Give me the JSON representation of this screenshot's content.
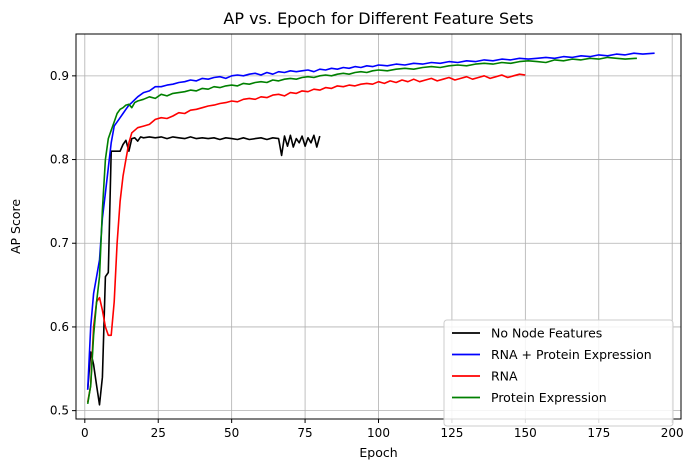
{
  "chart_data": {
    "type": "line",
    "title": "AP vs. Epoch for Different Feature Sets",
    "xlabel": "Epoch",
    "ylabel": "AP Score",
    "xlim": [
      -3,
      203
    ],
    "ylim": [
      0.49,
      0.95
    ],
    "xticks": [
      0,
      25,
      50,
      75,
      100,
      125,
      150,
      175,
      200
    ],
    "yticks": [
      0.5,
      0.6,
      0.7,
      0.8,
      0.9
    ],
    "ytick_labels": [
      "0.5",
      "0.6",
      "0.7",
      "0.8",
      "0.9"
    ],
    "grid": true,
    "legend_position": "lower-right",
    "series": [
      {
        "name": "No Node Features",
        "color": "#000000",
        "x": [
          1,
          2,
          3,
          4,
          5,
          6,
          7,
          8,
          9,
          10,
          11,
          12,
          13,
          14,
          15,
          16,
          17,
          18,
          19,
          20,
          22,
          24,
          26,
          28,
          30,
          32,
          34,
          36,
          38,
          40,
          42,
          44,
          46,
          48,
          50,
          52,
          54,
          56,
          58,
          60,
          62,
          64,
          66,
          67,
          68,
          69,
          70,
          71,
          72,
          73,
          74,
          75,
          76,
          77,
          78,
          79,
          80
        ],
        "y": [
          0.525,
          0.57,
          0.555,
          0.53,
          0.507,
          0.54,
          0.66,
          0.665,
          0.81,
          0.81,
          0.81,
          0.81,
          0.818,
          0.823,
          0.81,
          0.825,
          0.826,
          0.822,
          0.827,
          0.826,
          0.827,
          0.826,
          0.827,
          0.825,
          0.827,
          0.826,
          0.825,
          0.827,
          0.825,
          0.826,
          0.825,
          0.826,
          0.824,
          0.826,
          0.825,
          0.824,
          0.826,
          0.824,
          0.825,
          0.826,
          0.824,
          0.826,
          0.825,
          0.805,
          0.828,
          0.816,
          0.829,
          0.815,
          0.825,
          0.82,
          0.828,
          0.816,
          0.826,
          0.82,
          0.829,
          0.815,
          0.828
        ]
      },
      {
        "name": "RNA + Protein Expression",
        "color": "#0000ff",
        "x": [
          1,
          2,
          3,
          4,
          5,
          6,
          7,
          8,
          9,
          10,
          11,
          12,
          13,
          14,
          15,
          16,
          18,
          20,
          22,
          24,
          26,
          28,
          30,
          32,
          34,
          36,
          38,
          40,
          42,
          44,
          46,
          48,
          50,
          52,
          54,
          56,
          58,
          60,
          62,
          64,
          66,
          68,
          70,
          72,
          74,
          76,
          78,
          80,
          82,
          84,
          86,
          88,
          90,
          92,
          94,
          96,
          98,
          100,
          103,
          106,
          109,
          112,
          115,
          118,
          121,
          124,
          127,
          130,
          133,
          136,
          139,
          142,
          145,
          148,
          151,
          154,
          157,
          160,
          163,
          166,
          169,
          172,
          175,
          178,
          181,
          184,
          187,
          190,
          194
        ],
        "y": [
          0.525,
          0.6,
          0.64,
          0.66,
          0.68,
          0.73,
          0.76,
          0.79,
          0.82,
          0.84,
          0.845,
          0.85,
          0.855,
          0.86,
          0.865,
          0.868,
          0.875,
          0.88,
          0.882,
          0.887,
          0.887,
          0.889,
          0.89,
          0.892,
          0.893,
          0.895,
          0.894,
          0.897,
          0.896,
          0.898,
          0.899,
          0.897,
          0.9,
          0.901,
          0.9,
          0.902,
          0.903,
          0.901,
          0.904,
          0.902,
          0.905,
          0.904,
          0.906,
          0.905,
          0.906,
          0.907,
          0.905,
          0.908,
          0.907,
          0.909,
          0.908,
          0.91,
          0.909,
          0.911,
          0.91,
          0.912,
          0.911,
          0.913,
          0.912,
          0.914,
          0.913,
          0.915,
          0.914,
          0.916,
          0.915,
          0.917,
          0.916,
          0.918,
          0.917,
          0.919,
          0.918,
          0.92,
          0.919,
          0.921,
          0.92,
          0.921,
          0.922,
          0.921,
          0.923,
          0.922,
          0.924,
          0.923,
          0.925,
          0.924,
          0.926,
          0.925,
          0.927,
          0.926,
          0.927
        ]
      },
      {
        "name": "RNA",
        "color": "#ff0000",
        "x": [
          1,
          2,
          3,
          4,
          5,
          6,
          7,
          8,
          9,
          10,
          11,
          12,
          13,
          14,
          15,
          16,
          17,
          18,
          20,
          22,
          24,
          26,
          28,
          30,
          32,
          34,
          36,
          38,
          40,
          42,
          44,
          46,
          48,
          50,
          52,
          54,
          56,
          58,
          60,
          62,
          64,
          66,
          68,
          70,
          72,
          74,
          76,
          78,
          80,
          82,
          84,
          86,
          88,
          90,
          92,
          94,
          96,
          98,
          100,
          102,
          104,
          106,
          108,
          110,
          112,
          114,
          116,
          118,
          120,
          122,
          124,
          126,
          128,
          130,
          132,
          134,
          136,
          138,
          140,
          142,
          144,
          146,
          148,
          150
        ],
        "y": [
          0.51,
          0.53,
          0.6,
          0.63,
          0.635,
          0.62,
          0.6,
          0.59,
          0.59,
          0.63,
          0.7,
          0.75,
          0.78,
          0.8,
          0.82,
          0.832,
          0.835,
          0.838,
          0.84,
          0.842,
          0.848,
          0.85,
          0.849,
          0.852,
          0.856,
          0.855,
          0.859,
          0.86,
          0.862,
          0.864,
          0.865,
          0.867,
          0.868,
          0.87,
          0.869,
          0.872,
          0.873,
          0.872,
          0.875,
          0.874,
          0.877,
          0.878,
          0.876,
          0.88,
          0.879,
          0.882,
          0.881,
          0.884,
          0.883,
          0.886,
          0.885,
          0.888,
          0.887,
          0.889,
          0.888,
          0.89,
          0.891,
          0.89,
          0.893,
          0.891,
          0.894,
          0.892,
          0.895,
          0.893,
          0.896,
          0.893,
          0.895,
          0.897,
          0.894,
          0.896,
          0.898,
          0.895,
          0.897,
          0.899,
          0.896,
          0.898,
          0.9,
          0.897,
          0.899,
          0.901,
          0.898,
          0.9,
          0.902,
          0.901
        ]
      },
      {
        "name": "Protein Expression",
        "color": "#008000",
        "x": [
          1,
          2,
          3,
          4,
          5,
          6,
          7,
          8,
          9,
          10,
          11,
          12,
          13,
          14,
          15,
          16,
          17,
          18,
          20,
          22,
          24,
          26,
          28,
          30,
          32,
          34,
          36,
          38,
          40,
          42,
          44,
          46,
          48,
          50,
          52,
          54,
          56,
          58,
          60,
          62,
          64,
          66,
          68,
          70,
          72,
          74,
          76,
          78,
          80,
          82,
          84,
          86,
          88,
          90,
          92,
          94,
          96,
          98,
          100,
          103,
          106,
          109,
          112,
          115,
          118,
          121,
          124,
          127,
          130,
          133,
          136,
          139,
          142,
          145,
          148,
          151,
          154,
          157,
          160,
          163,
          166,
          169,
          172,
          175,
          178,
          181,
          184,
          188
        ],
        "y": [
          0.508,
          0.53,
          0.59,
          0.63,
          0.66,
          0.74,
          0.8,
          0.825,
          0.835,
          0.845,
          0.855,
          0.86,
          0.862,
          0.865,
          0.866,
          0.862,
          0.868,
          0.87,
          0.872,
          0.875,
          0.873,
          0.878,
          0.876,
          0.879,
          0.88,
          0.881,
          0.883,
          0.882,
          0.885,
          0.884,
          0.887,
          0.886,
          0.888,
          0.889,
          0.888,
          0.891,
          0.89,
          0.892,
          0.893,
          0.892,
          0.895,
          0.894,
          0.896,
          0.897,
          0.896,
          0.898,
          0.899,
          0.898,
          0.9,
          0.901,
          0.9,
          0.902,
          0.903,
          0.902,
          0.904,
          0.905,
          0.904,
          0.906,
          0.907,
          0.906,
          0.908,
          0.909,
          0.908,
          0.91,
          0.911,
          0.91,
          0.912,
          0.913,
          0.912,
          0.914,
          0.915,
          0.914,
          0.916,
          0.915,
          0.917,
          0.918,
          0.917,
          0.916,
          0.919,
          0.918,
          0.92,
          0.919,
          0.921,
          0.92,
          0.922,
          0.921,
          0.92,
          0.921
        ]
      }
    ]
  }
}
